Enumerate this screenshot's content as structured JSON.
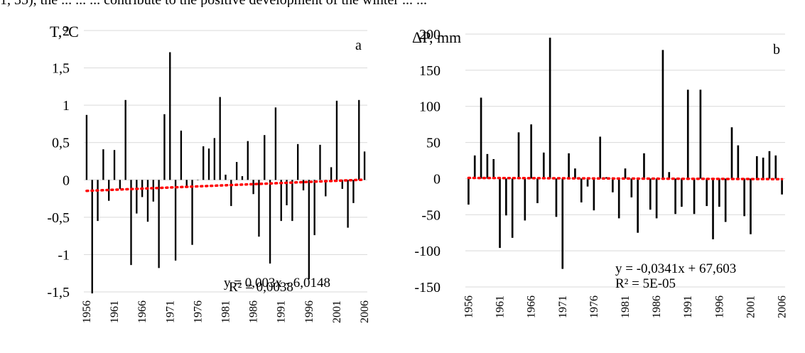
{
  "page": {
    "top_text": "1, 35), the ... ... ... contribute to the positive development of the winter ... ..."
  },
  "chart_data": [
    {
      "type": "bar",
      "panel": "a",
      "ylabel": "T,°C",
      "ylim": [
        -1.5,
        2
      ],
      "yticks": [
        -1.5,
        -1,
        -0.5,
        0,
        0.5,
        1,
        1.5,
        2
      ],
      "ytick_labels": [
        "-1,5",
        "-1",
        "-0,5",
        "0",
        "0,5",
        "1",
        "1,5",
        "2"
      ],
      "xlim": [
        1956,
        2006
      ],
      "xticks": [
        1956,
        1961,
        1966,
        1971,
        1976,
        1981,
        1986,
        1991,
        1996,
        2001,
        2006
      ],
      "xtick_labels": [
        "1956",
        "1961",
        "1966",
        "1971",
        "1976",
        "1981",
        "1986",
        "1991",
        "1996",
        "2001",
        "2006"
      ],
      "grid": true,
      "bar_color": "#000000",
      "x": [
        1956,
        1957,
        1958,
        1959,
        1960,
        1961,
        1962,
        1963,
        1964,
        1965,
        1966,
        1967,
        1968,
        1969,
        1970,
        1971,
        1972,
        1973,
        1974,
        1975,
        1976,
        1977,
        1978,
        1979,
        1980,
        1981,
        1982,
        1983,
        1984,
        1985,
        1986,
        1987,
        1988,
        1989,
        1990,
        1991,
        1992,
        1993,
        1994,
        1995,
        1996,
        1997,
        1998,
        1999,
        2000,
        2001,
        2002,
        2003,
        2004,
        2005,
        2006
      ],
      "values": [
        0.87,
        -1.52,
        -0.55,
        0.41,
        -0.28,
        0.4,
        -0.12,
        1.07,
        -1.14,
        -0.45,
        -0.23,
        -0.56,
        -0.29,
        -1.18,
        0.88,
        1.71,
        -1.08,
        0.66,
        -0.1,
        -0.87,
        0.0,
        0.45,
        0.42,
        0.56,
        1.11,
        0.07,
        -0.35,
        0.24,
        0.05,
        0.52,
        -0.19,
        -0.76,
        0.6,
        -1.12,
        0.97,
        -0.55,
        -0.34,
        -0.55,
        0.48,
        -0.14,
        -1.33,
        -0.74,
        0.47,
        -0.22,
        0.17,
        1.06,
        -0.12,
        -0.64,
        -0.31,
        1.07,
        0.38
      ],
      "trendline": {
        "slope": 0.003,
        "intercept": -6.0148,
        "color": "#ff0000",
        "style": "dotted"
      },
      "trend_equation": "y = 0,003x - 6,0148",
      "trend_r2": "R² = 0,0038"
    },
    {
      "type": "bar",
      "panel": "b",
      "ylabel": "ΔP, mm",
      "ylim": [
        -150,
        200
      ],
      "yticks": [
        -150,
        -100,
        -50,
        0,
        50,
        100,
        150,
        200
      ],
      "ytick_labels": [
        "-150",
        "-100",
        "-50",
        "0",
        "50",
        "100",
        "150",
        "200"
      ],
      "xlim": [
        1956,
        2006
      ],
      "xticks": [
        1956,
        1961,
        1966,
        1971,
        1976,
        1981,
        1986,
        1991,
        1996,
        2001,
        2006
      ],
      "xtick_labels": [
        "1956",
        "1961",
        "1966",
        "1971",
        "1976",
        "1981",
        "1986",
        "1991",
        "1996",
        "2001",
        "2006"
      ],
      "grid": true,
      "bar_color": "#000000",
      "x": [
        1956,
        1957,
        1958,
        1959,
        1960,
        1961,
        1962,
        1963,
        1964,
        1965,
        1966,
        1967,
        1968,
        1969,
        1970,
        1971,
        1972,
        1973,
        1974,
        1975,
        1976,
        1977,
        1978,
        1979,
        1980,
        1981,
        1982,
        1983,
        1984,
        1985,
        1986,
        1987,
        1988,
        1989,
        1990,
        1991,
        1992,
        1993,
        1994,
        1995,
        1996,
        1997,
        1998,
        1999,
        2000,
        2001,
        2002,
        2003,
        2004,
        2005,
        2006
      ],
      "values": [
        -36,
        32,
        112,
        34,
        27,
        -96,
        -51,
        -82,
        64,
        -58,
        75,
        -34,
        36,
        195,
        -53,
        -125,
        35,
        14,
        -33,
        -11,
        -44,
        58,
        2,
        -19,
        -55,
        14,
        -26,
        -75,
        35,
        -43,
        -55,
        178,
        9,
        -49,
        -39,
        123,
        -49,
        123,
        -38,
        -84,
        -39,
        -60,
        71,
        46,
        -52,
        -77,
        31,
        29,
        38,
        32,
        -22
      ],
      "trendline": {
        "slope": -0.0341,
        "intercept": 67.603,
        "color": "#ff0000",
        "style": "dotted"
      },
      "trend_equation": "y = -0,0341x + 67,603",
      "trend_r2": "R² = 5E-05"
    }
  ]
}
